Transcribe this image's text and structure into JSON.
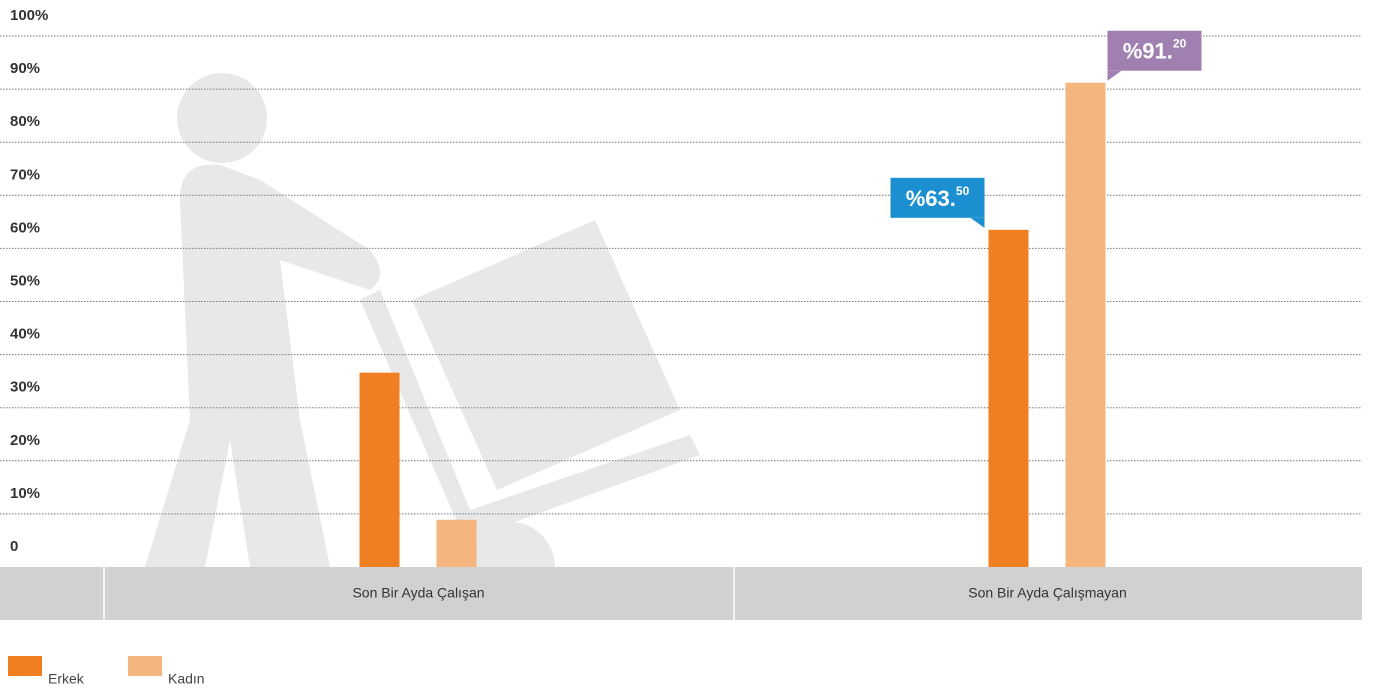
{
  "chart_data": {
    "type": "bar",
    "categories": [
      "Son Bir Ayda Çalışan",
      "Son Bir Ayda Çalışmayan"
    ],
    "series": [
      {
        "name": "Erkek",
        "color": "#f07f22",
        "label_color": "#1b8fd0",
        "values": [
          36.6,
          63.5
        ],
        "value_labels": [
          null,
          "%63.50"
        ]
      },
      {
        "name": "Kadın",
        "color": "#f5b57e",
        "label_color": "#a080b0",
        "values": [
          8.9,
          91.2
        ],
        "value_labels": [
          null,
          "%91.20"
        ]
      }
    ],
    "ylim": [
      0,
      100
    ],
    "yticks": [
      0,
      {
        "value": 10,
        "label": "10%"
      },
      {
        "value": 20,
        "label": "20%"
      },
      {
        "value": 30,
        "label": "30%"
      },
      {
        "value": 40,
        "label": "40%"
      },
      {
        "value": 50,
        "label": "50%"
      },
      {
        "value": 60,
        "label": "60%"
      },
      {
        "value": 70,
        "label": "70%"
      },
      {
        "value": 80,
        "label": "80%"
      },
      {
        "value": 90,
        "label": "90%"
      },
      {
        "value": 100,
        "label": "100%"
      }
    ],
    "grid": true
  }
}
